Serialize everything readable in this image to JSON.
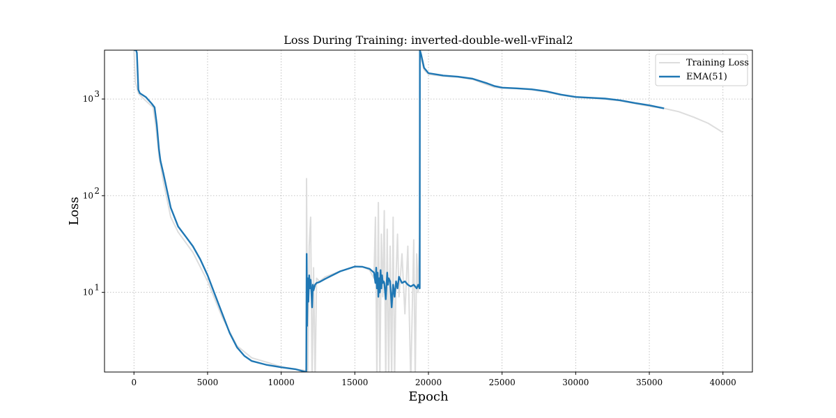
{
  "chart_data": {
    "type": "line",
    "title": "Loss During Training: inverted-double-well-vFinal2",
    "xlabel": "Epoch",
    "ylabel": "Loss",
    "xlim": [
      -2000,
      42000
    ],
    "ylim": [
      1.5,
      3200
    ],
    "yscale": "log",
    "grid": true,
    "legend_position": "top-right",
    "x_ticks": [
      0,
      5000,
      10000,
      15000,
      20000,
      25000,
      30000,
      35000,
      40000
    ],
    "x_tick_labels": [
      "0",
      "5000",
      "10000",
      "15000",
      "20000",
      "25000",
      "30000",
      "35000",
      "40000"
    ],
    "y_ticks": [
      10,
      100,
      1000
    ],
    "y_tick_labels": [
      {
        "base": "10",
        "exp": "1"
      },
      {
        "base": "10",
        "exp": "2"
      },
      {
        "base": "10",
        "exp": "3"
      }
    ],
    "colors": {
      "training_loss": "#dddddd",
      "ema": "#1f77b4"
    },
    "series": [
      {
        "name": "Training Loss",
        "x": [
          0,
          100,
          300,
          400,
          800,
          1300,
          1500,
          1700,
          2000,
          2500,
          3000,
          4000,
          5000,
          6000,
          7000,
          8000,
          9000,
          10000,
          11000,
          11700,
          11720,
          11800,
          11900,
          12000,
          12100,
          12200,
          12300,
          12400,
          12600,
          13000,
          14000,
          15000,
          15500,
          16000,
          16300,
          16400,
          16500,
          16600,
          16700,
          16800,
          16900,
          17000,
          17100,
          17200,
          17300,
          17400,
          17500,
          17600,
          17700,
          17800,
          17900,
          18000,
          18200,
          18400,
          18600,
          18800,
          19000,
          19100,
          19200,
          19300,
          19400,
          19420,
          19500,
          19700,
          20000,
          21000,
          22000,
          23000,
          24000,
          24500,
          25000,
          26000,
          27000,
          28000,
          29000,
          30000,
          31000,
          32000,
          33000,
          34000,
          35000,
          36000,
          37000,
          38000,
          39000,
          40000
        ],
        "y": [
          3200,
          1500,
          1150,
          1100,
          960,
          820,
          500,
          260,
          140,
          60,
          42,
          26,
          13,
          5.5,
          2.8,
          2.1,
          1.9,
          1.7,
          1.6,
          1.55,
          150,
          1.2,
          30,
          60,
          1.1,
          18,
          1.2,
          14,
          13,
          14.5,
          16.5,
          18.5,
          18.5,
          17,
          14,
          60,
          1.2,
          85,
          1.2,
          40,
          9,
          70,
          1.2,
          45,
          1.2,
          30,
          1.2,
          60,
          1.2,
          15,
          40,
          9,
          25,
          6,
          30,
          1.2,
          35,
          1.2,
          25,
          10,
          40,
          3200,
          2600,
          2000,
          1800,
          1720,
          1680,
          1600,
          1400,
          1320,
          1300,
          1280,
          1250,
          1180,
          1100,
          1040,
          1020,
          1000,
          960,
          900,
          840,
          800,
          740,
          650,
          560,
          450
        ]
      },
      {
        "name": "EMA(51)",
        "x": [
          0,
          150,
          200,
          300,
          400,
          800,
          1200,
          1400,
          1550,
          1700,
          1800,
          2000,
          2500,
          3000,
          3500,
          4000,
          4500,
          5000,
          5500,
          6000,
          6500,
          7000,
          7500,
          8000,
          9000,
          10000,
          11000,
          11700,
          11730,
          11760,
          11800,
          11850,
          11900,
          11950,
          12000,
          12050,
          12100,
          12150,
          12200,
          12300,
          12400,
          12600,
          13000,
          14000,
          15000,
          15500,
          16000,
          16300,
          16400,
          16450,
          16500,
          16550,
          16600,
          16650,
          16700,
          16750,
          16800,
          16850,
          16900,
          16950,
          17000,
          17100,
          17200,
          17250,
          17300,
          17400,
          17500,
          17600,
          17700,
          17800,
          17900,
          18000,
          18200,
          18400,
          18600,
          18800,
          19000,
          19200,
          19300,
          19400,
          19410,
          19420,
          19500,
          19700,
          20000,
          21000,
          22000,
          23000,
          24000,
          24500,
          25000,
          26000,
          27000,
          28000,
          29000,
          30000,
          31000,
          32000,
          33000,
          34000,
          35000,
          36000
        ],
        "y": [
          3200,
          3200,
          3000,
          1250,
          1150,
          1050,
          900,
          820,
          550,
          300,
          230,
          170,
          75,
          48,
          38,
          30,
          22,
          15,
          9.5,
          6,
          3.8,
          2.7,
          2.2,
          1.95,
          1.78,
          1.68,
          1.6,
          1.5,
          25,
          4.5,
          14,
          8,
          15,
          11,
          13.5,
          10,
          7,
          12,
          10.5,
          12,
          12.5,
          12.8,
          13.8,
          16.5,
          18.5,
          18.4,
          17.5,
          16,
          12.5,
          18,
          11,
          16,
          9,
          14,
          10,
          17,
          11,
          15,
          12.5,
          13,
          12.5,
          8.5,
          16,
          12,
          14,
          13,
          7,
          12,
          9,
          13,
          11,
          14.5,
          12.5,
          13,
          12,
          11.5,
          12,
          11,
          12,
          11,
          11,
          3200,
          2900,
          2100,
          1850,
          1750,
          1700,
          1620,
          1450,
          1360,
          1310,
          1290,
          1260,
          1200,
          1110,
          1050,
          1030,
          1010,
          970,
          910,
          860,
          800
        ]
      }
    ]
  }
}
